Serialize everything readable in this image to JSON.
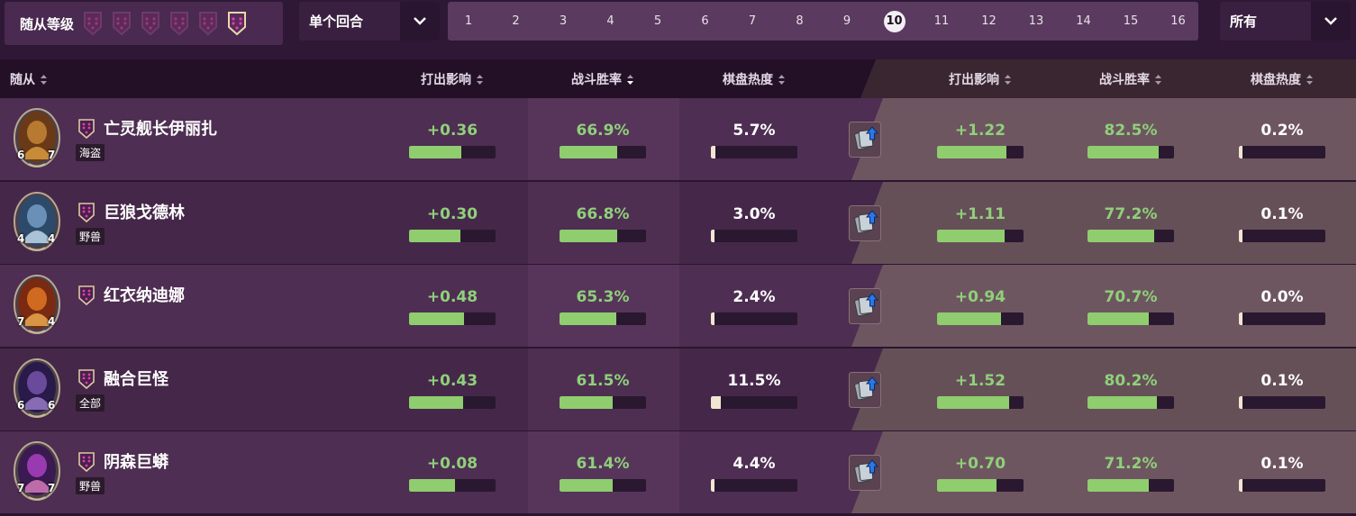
{
  "filters": {
    "tier_label": "随从等级",
    "tiers": [
      {
        "tier": 1,
        "active": false
      },
      {
        "tier": 2,
        "active": false
      },
      {
        "tier": 3,
        "active": false
      },
      {
        "tier": 4,
        "active": false
      },
      {
        "tier": 5,
        "active": false
      },
      {
        "tier": 6,
        "active": true
      }
    ],
    "mode_label": "单个回合",
    "turns": [
      "1",
      "2",
      "3",
      "4",
      "5",
      "6",
      "7",
      "8",
      "9",
      "10",
      "11",
      "12",
      "13",
      "14",
      "15",
      "16"
    ],
    "active_turn": "10",
    "filter_label": "所有"
  },
  "columns": {
    "minion": "随从",
    "play_impact": "打出影响",
    "combat_winrate": "战斗胜率",
    "board_heat": "棋盘热度",
    "golden_play_impact": "打出影响",
    "golden_combat_winrate": "战斗胜率",
    "golden_board_heat": "棋盘热度"
  },
  "sorted_by": "combat_winrate",
  "rows": [
    {
      "name": "亡灵舰长伊丽扎",
      "tribe": "海盗",
      "attack": "6",
      "health": "7",
      "play_impact": "+0.36",
      "play_impact_fill": 0.6,
      "combat_winrate": "66.9%",
      "combat_fill": 0.669,
      "board_heat": "5.7%",
      "heat_fill": 0.057,
      "g_play_impact": "+1.22",
      "g_play_impact_fill": 0.8,
      "g_combat_winrate": "82.5%",
      "g_combat_fill": 0.825,
      "g_board_heat": "0.2%",
      "g_heat_fill": 0.01,
      "art": "pirate"
    },
    {
      "name": "巨狼戈德林",
      "tribe": "野兽",
      "attack": "4",
      "health": "4",
      "play_impact": "+0.30",
      "play_impact_fill": 0.59,
      "combat_winrate": "66.8%",
      "combat_fill": 0.668,
      "board_heat": "3.0%",
      "heat_fill": 0.03,
      "g_play_impact": "+1.11",
      "g_play_impact_fill": 0.78,
      "g_combat_winrate": "77.2%",
      "g_combat_fill": 0.772,
      "g_board_heat": "0.1%",
      "g_heat_fill": 0.01,
      "art": "wolf"
    },
    {
      "name": "红衣纳迪娜",
      "tribe": "",
      "attack": "7",
      "health": "4",
      "play_impact": "+0.48",
      "play_impact_fill": 0.64,
      "combat_winrate": "65.3%",
      "combat_fill": 0.653,
      "board_heat": "2.4%",
      "heat_fill": 0.024,
      "g_play_impact": "+0.94",
      "g_play_impact_fill": 0.74,
      "g_combat_winrate": "70.7%",
      "g_combat_fill": 0.707,
      "g_board_heat": "0.0%",
      "g_heat_fill": 0.0,
      "art": "nadina"
    },
    {
      "name": "融合巨怪",
      "tribe": "全部",
      "attack": "6",
      "health": "6",
      "play_impact": "+0.43",
      "play_impact_fill": 0.62,
      "combat_winrate": "61.5%",
      "combat_fill": 0.615,
      "board_heat": "11.5%",
      "heat_fill": 0.115,
      "g_play_impact": "+1.52",
      "g_play_impact_fill": 0.83,
      "g_combat_winrate": "80.2%",
      "g_combat_fill": 0.802,
      "g_board_heat": "0.1%",
      "g_heat_fill": 0.01,
      "art": "amalgam"
    },
    {
      "name": "阴森巨蟒",
      "tribe": "野兽",
      "attack": "7",
      "health": "7",
      "play_impact": "+0.08",
      "play_impact_fill": 0.53,
      "combat_winrate": "61.4%",
      "combat_fill": 0.614,
      "board_heat": "4.4%",
      "heat_fill": 0.044,
      "g_play_impact": "+0.70",
      "g_play_impact_fill": 0.69,
      "g_combat_winrate": "71.2%",
      "g_combat_fill": 0.712,
      "g_board_heat": "0.1%",
      "g_heat_fill": 0.01,
      "art": "serpent"
    }
  ],
  "colors": {
    "positive": "#8fd07a",
    "bar_fill": "#8fcd6f",
    "heat_fill": "#f0e6d2",
    "row_left": "#4a2a4e",
    "row_right": "#6e5862",
    "header_bg": "#231026"
  },
  "icons": {
    "tier": "tier-shield-icon",
    "dropdown": "chevron-down-icon",
    "sort": "sort-icon",
    "upgrade": "golden-upgrade-icon"
  }
}
